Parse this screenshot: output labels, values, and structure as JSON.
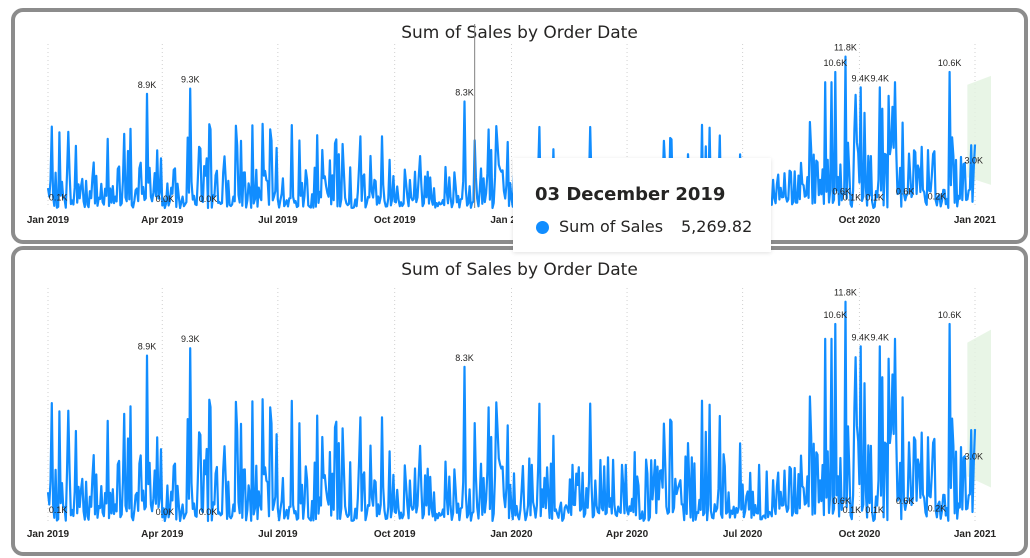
{
  "colors": {
    "series": "#118DFF",
    "forecast_band": "#e2f3e0",
    "border": "#8c8c8c",
    "gridline": "#d0d0d0"
  },
  "visuals": [
    {
      "title": "Sum of Sales by Order Date"
    },
    {
      "title": "Sum of Sales by Order Date"
    }
  ],
  "tooltip": {
    "date": "03 December 2019",
    "measure": "Sum of Sales",
    "value": "5,269.82"
  },
  "chart_data": [
    {
      "type": "line",
      "title": "Sum of Sales by Order Date",
      "x_ticks": [
        "Jan 2019",
        "Apr 2019",
        "Jul 2019",
        "Oct 2019",
        "Jan 2020",
        "Apr 2020",
        "Jul 2020",
        "Oct 2020",
        "Jan 2021"
      ],
      "ylim": [
        0,
        12000
      ],
      "grid": "vertical-dotted",
      "series": [
        {
          "values": []
        }
      ],
      "data_labels": [
        {
          "date": "2019-01-09",
          "value": 100,
          "text": "0.1K"
        },
        {
          "date": "2019-03-20",
          "value": 8900,
          "text": "8.9K"
        },
        {
          "date": "2019-04-03",
          "value": 0,
          "text": "0.0K"
        },
        {
          "date": "2019-04-23",
          "value": 9300,
          "text": "9.3K"
        },
        {
          "date": "2019-05-07",
          "value": 0,
          "text": "0.0K"
        },
        {
          "date": "2019-11-25",
          "value": 8300,
          "text": "8.3K"
        },
        {
          "date": "2020-09-12",
          "value": 10600,
          "text": "10.6K"
        },
        {
          "date": "2020-09-17",
          "value": 600,
          "text": "0.6K"
        },
        {
          "date": "2020-09-20",
          "value": 11800,
          "text": "11.8K"
        },
        {
          "date": "2020-09-25",
          "value": 100,
          "text": "0.1K"
        },
        {
          "date": "2020-10-02",
          "value": 9400,
          "text": "9.4K"
        },
        {
          "date": "2020-10-13",
          "value": 100,
          "text": "0.1K"
        },
        {
          "date": "2020-10-17",
          "value": 9400,
          "text": "9.4K"
        },
        {
          "date": "2020-11-06",
          "value": 600,
          "text": "0.6K"
        },
        {
          "date": "2020-12-01",
          "value": 200,
          "text": "0.2K"
        },
        {
          "date": "2020-12-11",
          "value": 10600,
          "text": "10.6K"
        },
        {
          "date": "2020-12-30",
          "value": 3000,
          "text": "3.0K"
        }
      ],
      "tooltip_point": {
        "date": "2019-12-03",
        "value": 5269.82
      }
    },
    {
      "type": "line",
      "title": "Sum of Sales by Order Date",
      "x_ticks": [
        "Jan 2019",
        "Apr 2019",
        "Jul 2019",
        "Oct 2019",
        "Jan 2020",
        "Apr 2020",
        "Jul 2020",
        "Oct 2020",
        "Jan 2021"
      ],
      "ylim": [
        0,
        12000
      ],
      "grid": "vertical-dotted",
      "series": [
        {
          "values": []
        }
      ],
      "data_labels": [
        {
          "date": "2019-01-09",
          "value": 100,
          "text": "0.1K"
        },
        {
          "date": "2019-03-20",
          "value": 8900,
          "text": "8.9K"
        },
        {
          "date": "2019-04-03",
          "value": 0,
          "text": "0.0K"
        },
        {
          "date": "2019-04-23",
          "value": 9300,
          "text": "9.3K"
        },
        {
          "date": "2019-05-07",
          "value": 0,
          "text": "0.0K"
        },
        {
          "date": "2019-11-25",
          "value": 8300,
          "text": "8.3K"
        },
        {
          "date": "2020-09-12",
          "value": 10600,
          "text": "10.6K"
        },
        {
          "date": "2020-09-17",
          "value": 600,
          "text": "0.6K"
        },
        {
          "date": "2020-09-20",
          "value": 11800,
          "text": "11.8K"
        },
        {
          "date": "2020-09-25",
          "value": 100,
          "text": "0.1K"
        },
        {
          "date": "2020-10-02",
          "value": 9400,
          "text": "9.4K"
        },
        {
          "date": "2020-10-13",
          "value": 100,
          "text": "0.1K"
        },
        {
          "date": "2020-10-17",
          "value": 9400,
          "text": "9.4K"
        },
        {
          "date": "2020-11-06",
          "value": 600,
          "text": "0.6K"
        },
        {
          "date": "2020-12-01",
          "value": 200,
          "text": "0.2K"
        },
        {
          "date": "2020-12-11",
          "value": 10600,
          "text": "10.6K"
        },
        {
          "date": "2020-12-30",
          "value": 3000,
          "text": "3.0K"
        }
      ]
    }
  ]
}
